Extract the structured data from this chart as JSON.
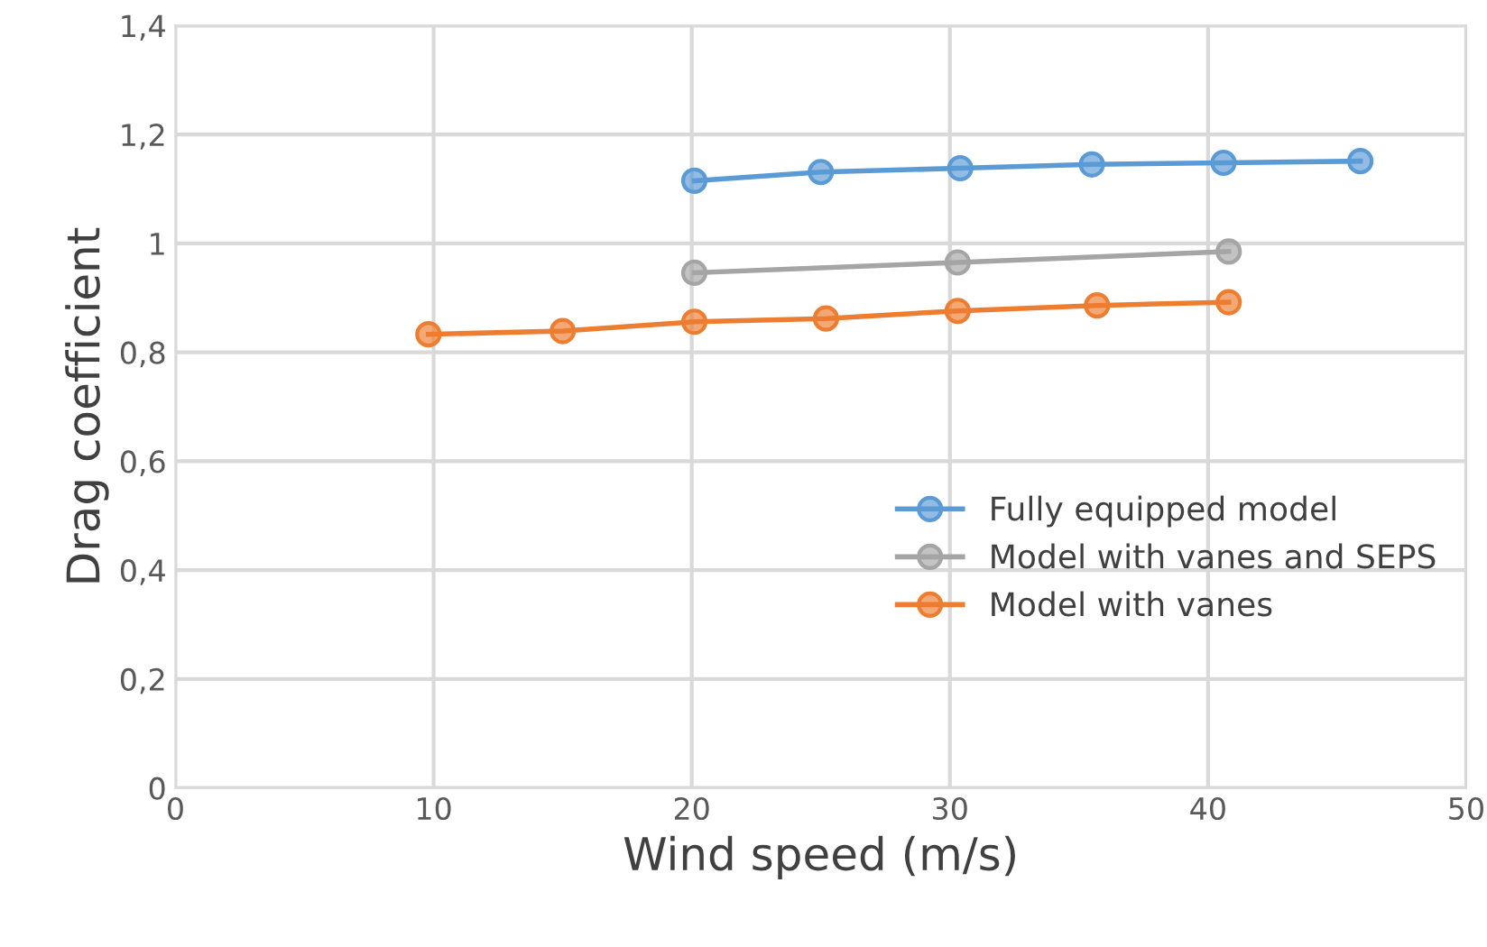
{
  "chart_data": {
    "type": "line",
    "xlabel": "Wind speed (m/s)",
    "ylabel": "Drag coefficient",
    "series": [
      {
        "name": "Fully equipped model",
        "color": "#5b9bd5",
        "x": [
          20.1,
          25.0,
          30.4,
          35.5,
          40.6,
          45.9
        ],
        "values": [
          1.115,
          1.131,
          1.138,
          1.145,
          1.148,
          1.151
        ]
      },
      {
        "name": "Model with vanes and SEPS",
        "color": "#a5a5a5",
        "x": [
          20.1,
          30.3,
          40.8
        ],
        "values": [
          0.946,
          0.965,
          0.985
        ]
      },
      {
        "name": "Model with vanes",
        "color": "#ed7d31",
        "x": [
          9.8,
          15.0,
          20.1,
          25.2,
          30.3,
          35.7,
          40.8
        ],
        "values": [
          0.833,
          0.839,
          0.856,
          0.862,
          0.876,
          0.886,
          0.892
        ]
      }
    ],
    "xlim": [
      0,
      50
    ],
    "xticks": [
      0,
      10,
      20,
      30,
      40,
      50
    ],
    "ylim": [
      0,
      1.4
    ],
    "yticks": [
      0,
      {
        "value": 0.2,
        "label": "0,2"
      },
      {
        "value": 0.4,
        "label": "0,4"
      },
      {
        "value": 0.6,
        "label": "0,6"
      },
      {
        "value": 0.8,
        "label": "0,8"
      },
      1,
      {
        "value": 1.2,
        "label": "1,2"
      },
      {
        "value": 1.4,
        "label": "1,4"
      }
    ],
    "grid": true,
    "legend": "center right",
    "marker": "circle",
    "line_style": "solid"
  }
}
